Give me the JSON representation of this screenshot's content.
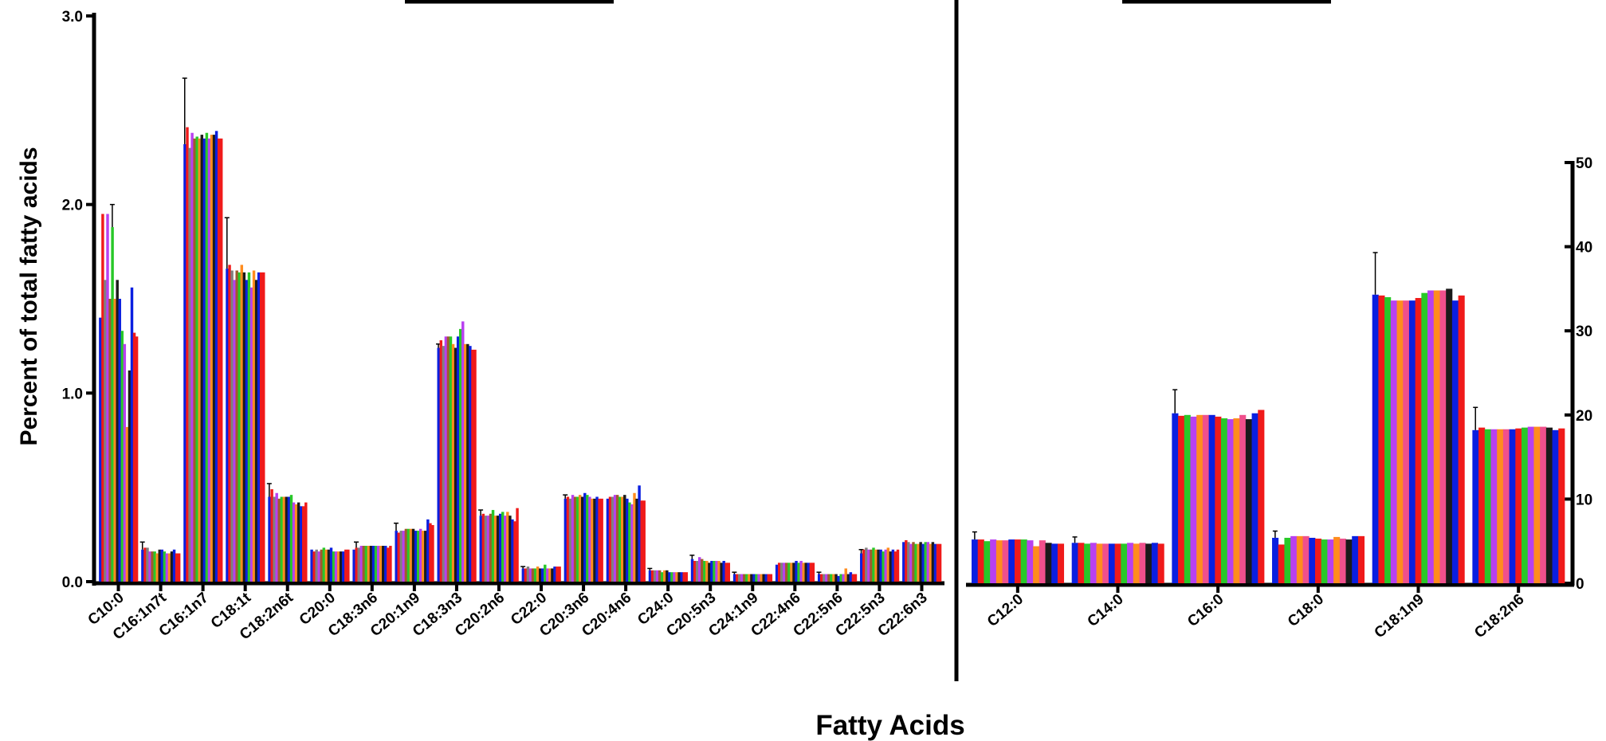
{
  "xlabel": "Fatty Acids",
  "ylabel": "Percent of total fatty acids",
  "series_colors": [
    "#0a1fe0",
    "#f01a1a",
    "#28c828",
    "#b840f0",
    "#ff8c1e",
    "#f0508c",
    "#1a1a1a",
    "#808080",
    "#a05a2c"
  ],
  "chart_data": [
    {
      "type": "bar",
      "ylabel": "Percent of total fatty acids",
      "ylim": [
        0,
        3.0
      ],
      "yticks": [
        "0.0",
        "1.0",
        "2.0",
        "3.0"
      ],
      "categories": [
        "C10:0",
        "C16:1n7t",
        "C16:1n7",
        "C18:1t",
        "C18:2n6t",
        "C20:0",
        "C18:3n6",
        "C20:1n9",
        "C18:3n3",
        "C20:2n6",
        "C22:0",
        "C20:3n6",
        "C20:4n6",
        "C24:0",
        "C20:5n3",
        "C24:1n9",
        "C22:4n6",
        "C22:5n6",
        "C22:5n3",
        "C22:6n3"
      ],
      "bar_colors": [
        "#0a1fe0",
        "#f01a1a",
        "#808080",
        "#b840f0",
        "#a05a2c",
        "#28c828",
        "#ff8c1e",
        "#1a1a1a",
        "#0a1fe0",
        "#28c828",
        "#b840f0",
        "#ff8c1e",
        "#1a1a1a",
        "#0a1fe0",
        "#f01a1a",
        "#f01a1a"
      ],
      "values": [
        [
          1.4,
          1.95,
          1.6,
          1.95,
          1.5,
          1.88,
          1.5,
          1.6,
          1.5,
          1.33,
          1.26,
          0.82,
          1.12,
          1.56,
          1.32,
          1.3
        ],
        [
          0.17,
          0.18,
          0.18,
          0.16,
          0.16,
          0.16,
          0.15,
          0.17,
          0.17,
          0.16,
          0.15,
          0.15,
          0.16,
          0.17,
          0.15,
          0.15
        ],
        [
          2.32,
          2.41,
          2.3,
          2.38,
          2.35,
          2.36,
          2.35,
          2.37,
          2.35,
          2.38,
          2.35,
          2.37,
          2.37,
          2.39,
          2.35,
          2.35
        ],
        [
          1.66,
          1.68,
          1.65,
          1.6,
          1.65,
          1.64,
          1.68,
          1.64,
          1.6,
          1.64,
          1.56,
          1.65,
          1.6,
          1.64,
          1.64,
          1.64
        ],
        [
          0.45,
          0.49,
          0.45,
          0.47,
          0.44,
          0.45,
          0.45,
          0.45,
          0.45,
          0.46,
          0.42,
          0.41,
          0.42,
          0.4,
          0.4,
          0.42
        ],
        [
          0.17,
          0.16,
          0.17,
          0.16,
          0.17,
          0.18,
          0.17,
          0.17,
          0.18,
          0.16,
          0.16,
          0.16,
          0.16,
          0.16,
          0.17,
          0.17
        ],
        [
          0.17,
          0.18,
          0.18,
          0.19,
          0.19,
          0.19,
          0.19,
          0.19,
          0.19,
          0.19,
          0.19,
          0.19,
          0.19,
          0.19,
          0.18,
          0.19
        ],
        [
          0.27,
          0.26,
          0.27,
          0.27,
          0.28,
          0.28,
          0.28,
          0.28,
          0.27,
          0.27,
          0.28,
          0.27,
          0.27,
          0.33,
          0.31,
          0.3
        ],
        [
          1.24,
          1.28,
          1.25,
          1.3,
          1.3,
          1.3,
          1.26,
          1.24,
          1.3,
          1.34,
          1.38,
          1.26,
          1.26,
          1.25,
          1.23,
          1.23
        ],
        [
          0.35,
          0.36,
          0.35,
          0.35,
          0.36,
          0.38,
          0.35,
          0.35,
          0.36,
          0.37,
          0.35,
          0.37,
          0.35,
          0.33,
          0.32,
          0.39
        ],
        [
          0.07,
          0.07,
          0.08,
          0.07,
          0.07,
          0.07,
          0.08,
          0.07,
          0.07,
          0.09,
          0.07,
          0.07,
          0.07,
          0.08,
          0.08,
          0.08
        ],
        [
          0.44,
          0.45,
          0.44,
          0.46,
          0.45,
          0.45,
          0.46,
          0.45,
          0.47,
          0.46,
          0.45,
          0.44,
          0.44,
          0.45,
          0.44,
          0.44
        ],
        [
          0.44,
          0.45,
          0.45,
          0.46,
          0.46,
          0.45,
          0.45,
          0.46,
          0.44,
          0.42,
          0.41,
          0.47,
          0.44,
          0.51,
          0.43,
          0.43
        ],
        [
          0.06,
          0.06,
          0.06,
          0.06,
          0.06,
          0.05,
          0.06,
          0.06,
          0.05,
          0.05,
          0.05,
          0.05,
          0.05,
          0.05,
          0.05,
          0.05
        ],
        [
          0.12,
          0.11,
          0.11,
          0.13,
          0.12,
          0.11,
          0.11,
          0.1,
          0.11,
          0.11,
          0.11,
          0.11,
          0.1,
          0.11,
          0.1,
          0.1
        ],
        [
          0.04,
          0.04,
          0.04,
          0.04,
          0.04,
          0.04,
          0.04,
          0.04,
          0.04,
          0.04,
          0.04,
          0.04,
          0.04,
          0.04,
          0.04,
          0.04
        ],
        [
          0.09,
          0.1,
          0.1,
          0.1,
          0.1,
          0.1,
          0.1,
          0.1,
          0.11,
          0.1,
          0.11,
          0.1,
          0.1,
          0.1,
          0.1,
          0.1
        ],
        [
          0.04,
          0.04,
          0.04,
          0.04,
          0.04,
          0.04,
          0.04,
          0.04,
          0.03,
          0.04,
          0.04,
          0.07,
          0.04,
          0.05,
          0.04,
          0.04
        ],
        [
          0.15,
          0.17,
          0.18,
          0.17,
          0.17,
          0.18,
          0.17,
          0.17,
          0.17,
          0.16,
          0.17,
          0.18,
          0.16,
          0.17,
          0.16,
          0.17
        ],
        [
          0.21,
          0.22,
          0.21,
          0.2,
          0.21,
          0.2,
          0.2,
          0.21,
          0.2,
          0.21,
          0.21,
          0.2,
          0.21,
          0.2,
          0.2,
          0.2
        ]
      ],
      "errors": [
        [
          0,
          0,
          0,
          0,
          0,
          0.12,
          0,
          0,
          0,
          0,
          0,
          0,
          0,
          0,
          0,
          0
        ],
        [
          0.04,
          0,
          0,
          0,
          0,
          0,
          0,
          0,
          0,
          0,
          0,
          0,
          0,
          0,
          0,
          0
        ],
        [
          0.35,
          0,
          0,
          0,
          0,
          0,
          0,
          0,
          0,
          0,
          0,
          0,
          0,
          0,
          0,
          0
        ],
        [
          0.27,
          0,
          0,
          0,
          0,
          0,
          0,
          0,
          0,
          0,
          0,
          0,
          0,
          0,
          0,
          0
        ],
        [
          0.07,
          0,
          0,
          0,
          0,
          0,
          0,
          0,
          0,
          0,
          0,
          0,
          0,
          0,
          0,
          0
        ],
        [
          0,
          0,
          0,
          0,
          0,
          0,
          0,
          0,
          0,
          0,
          0,
          0,
          0,
          0,
          0,
          0
        ],
        [
          0,
          0.03,
          0,
          0,
          0,
          0,
          0,
          0,
          0,
          0,
          0,
          0,
          0,
          0,
          0,
          0
        ],
        [
          0.04,
          0,
          0,
          0,
          0,
          0,
          0,
          0,
          0,
          0,
          0,
          0,
          0,
          0,
          0,
          0
        ],
        [
          0.02,
          0,
          0,
          0,
          0,
          0,
          0,
          0,
          0,
          0,
          0,
          0,
          0,
          0,
          0,
          0
        ],
        [
          0.03,
          0,
          0,
          0,
          0,
          0,
          0,
          0,
          0,
          0,
          0,
          0,
          0,
          0,
          0,
          0
        ],
        [
          0.01,
          0,
          0,
          0,
          0,
          0,
          0,
          0,
          0,
          0,
          0,
          0,
          0,
          0,
          0,
          0
        ],
        [
          0.02,
          0,
          0,
          0,
          0,
          0,
          0,
          0,
          0,
          0,
          0,
          0,
          0,
          0,
          0,
          0
        ],
        [
          0,
          0,
          0,
          0,
          0,
          0,
          0,
          0,
          0,
          0,
          0,
          0,
          0,
          0,
          0,
          0
        ],
        [
          0.01,
          0,
          0,
          0,
          0,
          0,
          0,
          0,
          0,
          0,
          0,
          0,
          0,
          0,
          0,
          0
        ],
        [
          0.02,
          0,
          0,
          0,
          0,
          0,
          0,
          0,
          0,
          0,
          0,
          0,
          0,
          0,
          0,
          0
        ],
        [
          0.01,
          0,
          0,
          0,
          0,
          0,
          0,
          0,
          0,
          0,
          0,
          0,
          0,
          0,
          0,
          0
        ],
        [
          0,
          0,
          0,
          0,
          0,
          0,
          0,
          0,
          0,
          0,
          0,
          0,
          0,
          0,
          0,
          0
        ],
        [
          0.01,
          0,
          0,
          0,
          0,
          0,
          0,
          0,
          0,
          0,
          0,
          0,
          0,
          0,
          0,
          0
        ],
        [
          0.02,
          0,
          0,
          0,
          0,
          0,
          0,
          0,
          0,
          0,
          0,
          0,
          0,
          0,
          0,
          0
        ],
        [
          0,
          0,
          0,
          0,
          0,
          0,
          0,
          0,
          0,
          0,
          0,
          0,
          0,
          0,
          0,
          0
        ]
      ]
    },
    {
      "type": "bar",
      "ylim": [
        0,
        50
      ],
      "yticks": [
        "0",
        "10",
        "20",
        "30",
        "40",
        "50"
      ],
      "categories": [
        "C12:0",
        "C14:0",
        "C16:0",
        "C18:0",
        "C18:1n9",
        "C18:2n6"
      ],
      "bar_colors": [
        "#0a1fe0",
        "#f01a1a",
        "#28c828",
        "#b840f0",
        "#ff8c1e",
        "#f0508c",
        "#0a1fe0",
        "#f01a1a",
        "#28c828",
        "#b840f0",
        "#ff8c1e",
        "#f0508c",
        "#1a1a1a",
        "#0a1fe0",
        "#f01a1a"
      ],
      "values": [
        [
          5.2,
          5.2,
          5.0,
          5.2,
          5.1,
          5.1,
          5.2,
          5.2,
          5.2,
          5.1,
          4.4,
          5.1,
          4.8,
          4.7,
          4.7
        ],
        [
          4.8,
          4.8,
          4.7,
          4.8,
          4.7,
          4.7,
          4.7,
          4.7,
          4.7,
          4.8,
          4.7,
          4.8,
          4.7,
          4.8,
          4.7
        ],
        [
          20.2,
          19.9,
          20.0,
          19.8,
          20.0,
          20.0,
          20.0,
          19.8,
          19.6,
          19.5,
          19.6,
          20.0,
          19.5,
          20.2,
          20.6
        ],
        [
          5.4,
          4.6,
          5.4,
          5.6,
          5.6,
          5.6,
          5.4,
          5.3,
          5.2,
          5.2,
          5.5,
          5.3,
          5.2,
          5.6,
          5.6
        ],
        [
          34.3,
          34.2,
          34.0,
          33.6,
          33.6,
          33.6,
          33.6,
          33.9,
          34.5,
          34.8,
          34.8,
          34.8,
          35.0,
          33.6,
          34.2
        ],
        [
          18.2,
          18.5,
          18.3,
          18.3,
          18.3,
          18.3,
          18.3,
          18.4,
          18.5,
          18.6,
          18.6,
          18.6,
          18.5,
          18.2,
          18.4
        ]
      ],
      "errors": [
        [
          0.9,
          0,
          0,
          0,
          0,
          0,
          0,
          0,
          0,
          0,
          0,
          0,
          0,
          0,
          0
        ],
        [
          0.7,
          0,
          0,
          0,
          0,
          0,
          0,
          0,
          0,
          0,
          0,
          0,
          0,
          0,
          0
        ],
        [
          2.8,
          0,
          0,
          0,
          0,
          0,
          0,
          0,
          0,
          0,
          0,
          0,
          0,
          0,
          0
        ],
        [
          0.8,
          0,
          0,
          0,
          0,
          0,
          0,
          0,
          0,
          0,
          0,
          0,
          0,
          0,
          0
        ],
        [
          5.0,
          0,
          0,
          0,
          0,
          0,
          0,
          0,
          0,
          0,
          0,
          0,
          0,
          0,
          0
        ],
        [
          2.7,
          0,
          0,
          0,
          0,
          0,
          0,
          0,
          0,
          0,
          0,
          0,
          0,
          0,
          0
        ]
      ]
    }
  ]
}
